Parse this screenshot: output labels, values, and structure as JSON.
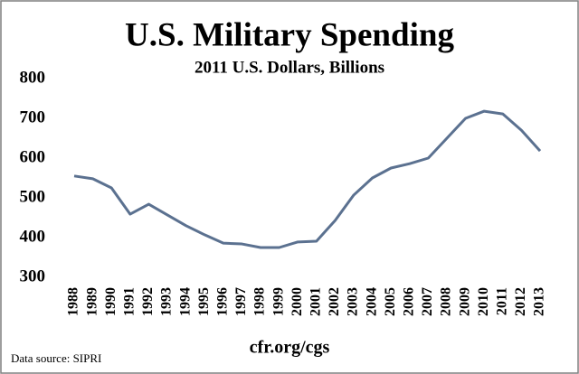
{
  "chart_data": {
    "type": "line",
    "title": "U.S. Military Spending",
    "subtitle": "2011 U.S. Dollars, Billions",
    "x": [
      1988,
      1989,
      1990,
      1991,
      1992,
      1993,
      1994,
      1995,
      1996,
      1997,
      1998,
      1999,
      2000,
      2001,
      2002,
      2003,
      2004,
      2005,
      2006,
      2007,
      2008,
      2009,
      2010,
      2011,
      2012,
      2013
    ],
    "values": [
      555,
      548,
      525,
      459,
      484,
      457,
      430,
      407,
      386,
      384,
      375,
      375,
      389,
      391,
      443,
      507,
      550,
      575,
      586,
      600,
      650,
      700,
      718,
      711,
      670,
      618
    ],
    "color": "#5b7190",
    "ylim": [
      300,
      800
    ],
    "yticks": [
      300,
      400,
      500,
      600,
      700,
      800
    ],
    "source": "Data source: SIPRI",
    "credit": "cfr.org/cgs"
  }
}
